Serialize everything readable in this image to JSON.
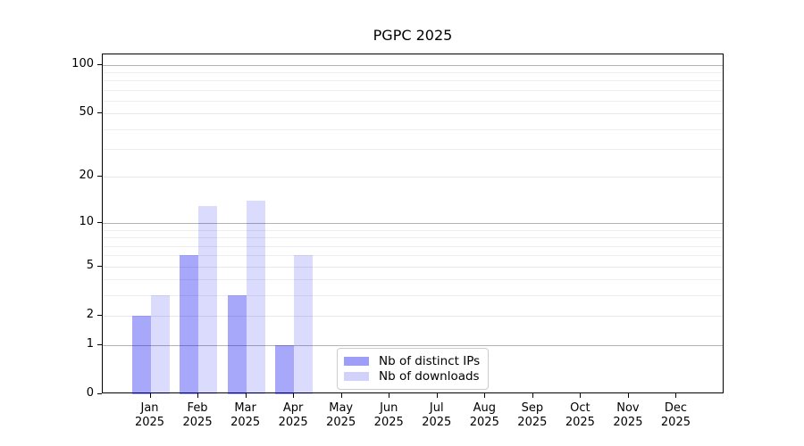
{
  "chart_data": {
    "type": "bar",
    "title": "PGPC 2025",
    "categories": [
      "Jan",
      "Feb",
      "Mar",
      "Apr",
      "May",
      "Jun",
      "Jul",
      "Aug",
      "Sep",
      "Oct",
      "Nov",
      "Dec"
    ],
    "category_year": "2025",
    "series": [
      {
        "name": "Nb of distinct IPs",
        "color": "#0000f0",
        "alpha": 0.34,
        "values": [
          2,
          6,
          3,
          1,
          0,
          0,
          0,
          0,
          0,
          0,
          0,
          0
        ]
      },
      {
        "name": "Nb of downloads",
        "color": "#0000f0",
        "alpha": 0.14,
        "values": [
          3,
          13,
          14,
          6,
          0,
          0,
          0,
          0,
          0,
          0,
          0,
          0
        ]
      }
    ],
    "xlabel": "",
    "ylabel": "",
    "yscale": "log1p",
    "ylim": [
      0,
      116
    ],
    "yticks": [
      0,
      1,
      2,
      5,
      10,
      20,
      50,
      100
    ],
    "gridlines": {
      "decade": [
        1,
        10,
        100
      ],
      "light": [
        2,
        5,
        20,
        50
      ],
      "minor": [
        3,
        4,
        6,
        7,
        8,
        9,
        30,
        40,
        60,
        70,
        80,
        90
      ]
    },
    "grid": "on",
    "legend_position": "lower center",
    "colors": {
      "decade_grid": "#b3b3b3",
      "light_grid": "#e8e8e8",
      "minor_grid": "#ededed",
      "spine": "#000000",
      "background": "#ffffff"
    }
  }
}
